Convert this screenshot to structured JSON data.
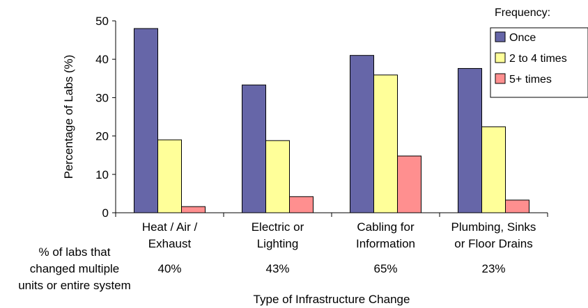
{
  "chart_data": {
    "type": "bar",
    "ylabel": "Percentage of Labs (%)",
    "xlabel": "Type of Infrastructure Change",
    "ylim": [
      0,
      50
    ],
    "yticks": [
      0,
      10,
      20,
      30,
      40,
      50
    ],
    "grid": false,
    "legend_position": "top-right",
    "legend_title": "Frequency:",
    "categories": [
      [
        "Heat / Air /",
        "Exhaust"
      ],
      [
        "Electric or",
        "Lighting"
      ],
      [
        "Cabling for",
        "Information"
      ],
      [
        "Plumbing, Sinks",
        "or Floor Drains"
      ]
    ],
    "series": [
      {
        "name": "Once",
        "color": "#6666a8",
        "values": [
          48,
          33.3,
          41,
          37.6
        ]
      },
      {
        "name": "2 to 4 times",
        "color": "#ffff99",
        "values": [
          19,
          18.8,
          35.9,
          22.4
        ]
      },
      {
        "name": "5+ times",
        "color": "#ff8f8f",
        "values": [
          1.6,
          4.2,
          14.8,
          3.3
        ]
      }
    ],
    "annotation": {
      "label": [
        "% of labs that",
        "changed multiple",
        "units or entire system"
      ],
      "values": [
        "40%",
        "43%",
        "65%",
        "23%"
      ]
    }
  }
}
